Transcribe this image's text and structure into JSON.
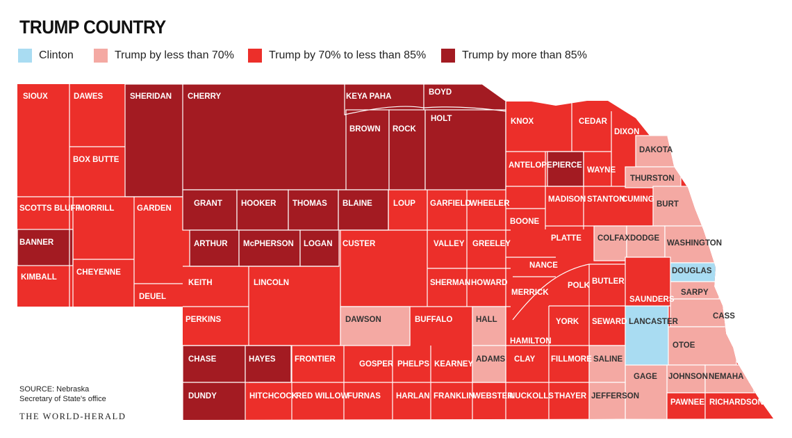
{
  "title": "TRUMP COUNTRY",
  "legend": [
    {
      "label": "Clinton",
      "color": "#a9dcf2"
    },
    {
      "label": "Trump by less than 70%",
      "color": "#f4a9a3"
    },
    {
      "label": "Trump by 70% to less than 85%",
      "color": "#ec2f2a"
    },
    {
      "label": "Trump by more than 85%",
      "color": "#a31b22"
    }
  ],
  "source_line1": "SOURCE: Nebraska",
  "source_line2": "Secretary of State's office",
  "credit": "THE WORLD-HERALD",
  "counties": {
    "sioux": "SIOUX",
    "dawes": "DAWES",
    "sheridan": "SHERIDAN",
    "cherry": "CHERRY",
    "keya_paha": "KEYA PAHA",
    "boyd": "BOYD",
    "brown": "BROWN",
    "rock": "ROCK",
    "holt": "HOLT",
    "knox": "KNOX",
    "cedar": "CEDAR",
    "dixon": "DIXON",
    "dakota": "DAKOTA",
    "box_butte": "BOX BUTTE",
    "antelope": "ANTELOPE",
    "pierce": "PIERCE",
    "wayne": "WAYNE",
    "thurston": "THURSTON",
    "scotts_bluff": "SCOTTS BLUFF",
    "morrill": "MORRILL",
    "garden": "GARDEN",
    "grant": "GRANT",
    "hooker": "HOOKER",
    "thomas": "THOMAS",
    "blaine": "BLAINE",
    "loup": "LOUP",
    "garfield": "GARFIELD",
    "wheeler": "WHEELER",
    "madison": "MADISON",
    "stanton": "STANTON",
    "cuming": "CUMING",
    "burt": "BURT",
    "banner": "BANNER",
    "boone": "BOONE",
    "arthur": "ARTHUR",
    "mcpherson": "McPHERSON",
    "logan": "LOGAN",
    "custer": "CUSTER",
    "valley": "VALLEY",
    "greeley": "GREELEY",
    "platte": "PLATTE",
    "colfax": "COLFAX",
    "dodge": "DODGE",
    "washington": "WASHINGTON",
    "kimball": "KIMBALL",
    "cheyenne": "CHEYENNE",
    "nance": "NANCE",
    "douglas": "DOUGLAS",
    "keith": "KEITH",
    "lincoln": "LINCOLN",
    "sherman": "SHERMAN",
    "howard": "HOWARD",
    "polk": "POLK",
    "butler": "BUTLER",
    "sarpy": "SARPY",
    "deuel": "DEUEL",
    "merrick": "MERRICK",
    "saunders": "SAUNDERS",
    "perkins": "PERKINS",
    "dawson": "DAWSON",
    "buffalo": "BUFFALO",
    "hall": "HALL",
    "york": "YORK",
    "seward": "SEWARD",
    "lancaster": "LANCASTER",
    "cass": "CASS",
    "hamilton": "HAMILTON",
    "otoe": "OTOE",
    "chase": "CHASE",
    "hayes": "HAYES",
    "frontier": "FRONTIER",
    "gosper": "GOSPER",
    "phelps": "PHELPS",
    "kearney": "KEARNEY",
    "adams": "ADAMS",
    "clay": "CLAY",
    "fillmore": "FILLMORE",
    "saline": "SALINE",
    "gage": "GAGE",
    "johnson": "JOHNSON",
    "nemaha": "NEMAHA",
    "dundy": "DUNDY",
    "hitchcock": "HITCHCOCK",
    "red_willow": "RED WILLOW",
    "furnas": "FURNAS",
    "harlan": "HARLAN",
    "franklin": "FRANKLIN",
    "webster": "WEBSTER",
    "nuckolls": "NUCKOLLS",
    "thayer": "THAYER",
    "jefferson": "JEFFERSON",
    "pawnee": "PAWNEE",
    "richardson": "RICHARDSON"
  }
}
